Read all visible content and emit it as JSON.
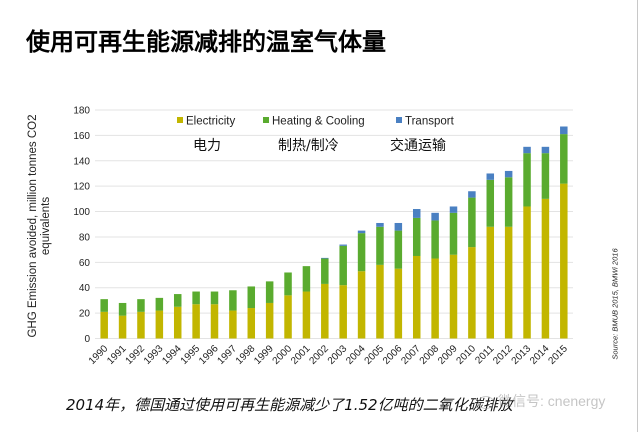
{
  "title": "使用可再生能源减排的温室气体量",
  "caption": "2014年，德国通过使用可再生能源减少了1.52亿吨的二氧化碳排放",
  "source": "Source: BMUB 2015, BMWi 2016",
  "watermark": "微信号: cnenergy",
  "chart_data": {
    "type": "bar",
    "stacked": true,
    "title": "",
    "xlabel": "",
    "ylabel": "GHG Emission avoided, million tonnes CO2 equivalents",
    "ylim": [
      0,
      180
    ],
    "yticks": [
      0,
      20,
      40,
      60,
      80,
      100,
      120,
      140,
      160,
      180
    ],
    "grid": true,
    "legend_position": "top",
    "categories": [
      "1990",
      "1991",
      "1992",
      "1993",
      "1994",
      "1995",
      "1996",
      "1997",
      "1998",
      "1999",
      "2000",
      "2001",
      "2002",
      "2003",
      "2004",
      "2005",
      "2006",
      "2007",
      "2008",
      "2009",
      "2010",
      "2011",
      "2012",
      "2013",
      "2014",
      "2015"
    ],
    "series": [
      {
        "name": "Electricity",
        "cn_label": "电力",
        "color": "#c2b600",
        "values": [
          21,
          18,
          21,
          22,
          25,
          27,
          27,
          22,
          24,
          28,
          34,
          37,
          43,
          42,
          53,
          58,
          55,
          65,
          63,
          66,
          72,
          88,
          88,
          104,
          110,
          122
        ]
      },
      {
        "name": "Heating & Cooling",
        "cn_label": "制热/制冷",
        "color": "#5aab2f",
        "values": [
          10,
          10,
          10,
          10,
          10,
          10,
          10,
          16,
          17,
          17,
          18,
          20,
          20,
          31,
          30,
          30,
          30,
          30,
          30,
          33,
          39,
          37,
          39,
          42,
          36,
          39
        ]
      },
      {
        "name": "Transport",
        "cn_label": "交通运输",
        "color": "#4a80c2",
        "values": [
          0,
          0,
          0,
          0,
          0,
          0,
          0,
          0,
          0,
          0,
          0,
          0,
          0.5,
          1,
          2,
          3,
          6,
          7,
          6,
          5,
          5,
          5,
          5,
          5,
          5,
          6
        ]
      }
    ]
  }
}
